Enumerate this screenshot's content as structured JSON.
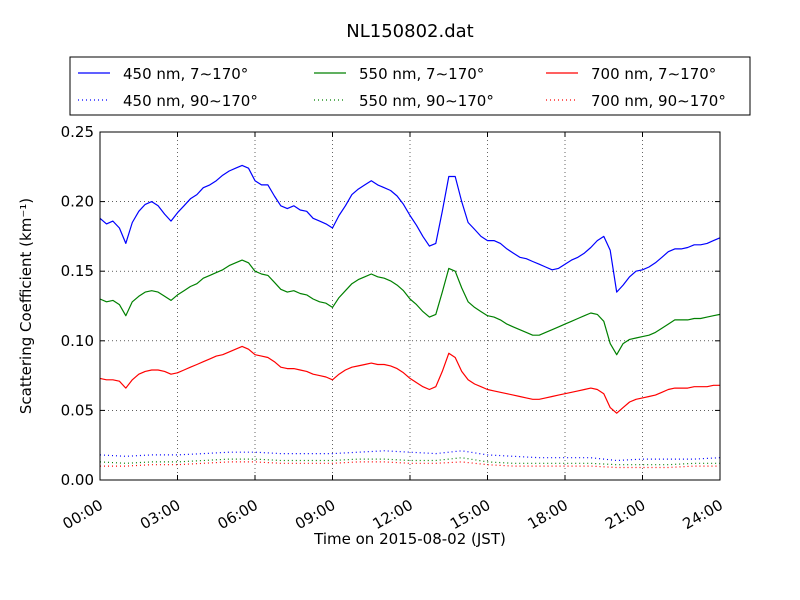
{
  "chart_data": {
    "type": "line",
    "title": "NL150802.dat",
    "xlabel": "Time on 2015-08-02 (JST)",
    "ylabel": "Scattering Coefficient (km⁻¹)",
    "x_unit": "hours",
    "xlim": [
      0,
      24
    ],
    "ylim": [
      0,
      0.25
    ],
    "grid": true,
    "legend_placement": "top",
    "x_ticks": [
      "00:00",
      "03:00",
      "06:00",
      "09:00",
      "12:00",
      "15:00",
      "18:00",
      "21:00",
      "24:00"
    ],
    "y_ticks": [
      "0.00",
      "0.05",
      "0.10",
      "0.15",
      "0.20",
      "0.25"
    ],
    "series": [
      {
        "name": "450 nm, 7∼170°",
        "color": "#0000ff",
        "style": "solid",
        "x": [
          0,
          0.25,
          0.5,
          0.75,
          1,
          1.25,
          1.5,
          1.75,
          2,
          2.25,
          2.5,
          2.75,
          3,
          3.25,
          3.5,
          3.75,
          4,
          4.25,
          4.5,
          4.75,
          5,
          5.25,
          5.5,
          5.75,
          6,
          6.25,
          6.5,
          6.75,
          7,
          7.25,
          7.5,
          7.75,
          8,
          8.25,
          8.5,
          8.75,
          9,
          9.25,
          9.5,
          9.75,
          10,
          10.25,
          10.5,
          10.75,
          11,
          11.25,
          11.5,
          11.75,
          12,
          12.25,
          12.5,
          12.75,
          13,
          13.25,
          13.5,
          13.75,
          14,
          14.25,
          14.5,
          14.75,
          15,
          15.25,
          15.5,
          15.75,
          16,
          16.25,
          16.5,
          16.75,
          17,
          17.25,
          17.5,
          17.75,
          18,
          18.25,
          18.5,
          18.75,
          19,
          19.25,
          19.5,
          19.75,
          20,
          20.25,
          20.5,
          20.75,
          21,
          21.25,
          21.5,
          21.75,
          22,
          22.25,
          22.5,
          22.75,
          23,
          23.25,
          23.5,
          23.75,
          24
        ],
        "y": [
          0.188,
          0.184,
          0.186,
          0.181,
          0.17,
          0.185,
          0.193,
          0.198,
          0.2,
          0.197,
          0.191,
          0.186,
          0.192,
          0.197,
          0.202,
          0.205,
          0.21,
          0.212,
          0.215,
          0.219,
          0.222,
          0.224,
          0.226,
          0.224,
          0.215,
          0.212,
          0.212,
          0.204,
          0.197,
          0.195,
          0.197,
          0.194,
          0.193,
          0.188,
          0.186,
          0.184,
          0.181,
          0.19,
          0.197,
          0.205,
          0.209,
          0.212,
          0.215,
          0.212,
          0.21,
          0.208,
          0.204,
          0.198,
          0.19,
          0.183,
          0.175,
          0.168,
          0.17,
          0.193,
          0.218,
          0.218,
          0.2,
          0.185,
          0.18,
          0.175,
          0.172,
          0.172,
          0.17,
          0.166,
          0.163,
          0.16,
          0.159,
          0.157,
          0.155,
          0.153,
          0.151,
          0.152,
          0.155,
          0.158,
          0.16,
          0.163,
          0.167,
          0.172,
          0.175,
          0.165,
          0.135,
          0.14,
          0.146,
          0.15,
          0.151,
          0.153,
          0.156,
          0.16,
          0.164,
          0.166,
          0.166,
          0.167,
          0.169,
          0.169,
          0.17,
          0.172,
          0.174
        ]
      },
      {
        "name": "550 nm, 7∼170°",
        "color": "#008000",
        "style": "solid",
        "x": [
          0,
          0.25,
          0.5,
          0.75,
          1,
          1.25,
          1.5,
          1.75,
          2,
          2.25,
          2.5,
          2.75,
          3,
          3.25,
          3.5,
          3.75,
          4,
          4.25,
          4.5,
          4.75,
          5,
          5.25,
          5.5,
          5.75,
          6,
          6.25,
          6.5,
          6.75,
          7,
          7.25,
          7.5,
          7.75,
          8,
          8.25,
          8.5,
          8.75,
          9,
          9.25,
          9.5,
          9.75,
          10,
          10.25,
          10.5,
          10.75,
          11,
          11.25,
          11.5,
          11.75,
          12,
          12.25,
          12.5,
          12.75,
          13,
          13.25,
          13.5,
          13.75,
          14,
          14.25,
          14.5,
          14.75,
          15,
          15.25,
          15.5,
          15.75,
          16,
          16.25,
          16.5,
          16.75,
          17,
          17.25,
          17.5,
          17.75,
          18,
          18.25,
          18.5,
          18.75,
          19,
          19.25,
          19.5,
          19.75,
          20,
          20.25,
          20.5,
          20.75,
          21,
          21.25,
          21.5,
          21.75,
          22,
          22.25,
          22.5,
          22.75,
          23,
          23.25,
          23.5,
          23.75,
          24
        ],
        "y": [
          0.13,
          0.128,
          0.129,
          0.126,
          0.118,
          0.128,
          0.132,
          0.135,
          0.136,
          0.135,
          0.132,
          0.129,
          0.133,
          0.136,
          0.139,
          0.141,
          0.145,
          0.147,
          0.149,
          0.151,
          0.154,
          0.156,
          0.158,
          0.156,
          0.15,
          0.148,
          0.147,
          0.142,
          0.137,
          0.135,
          0.136,
          0.134,
          0.133,
          0.13,
          0.128,
          0.127,
          0.124,
          0.131,
          0.136,
          0.141,
          0.144,
          0.146,
          0.148,
          0.146,
          0.145,
          0.143,
          0.14,
          0.136,
          0.13,
          0.126,
          0.121,
          0.117,
          0.119,
          0.135,
          0.152,
          0.15,
          0.138,
          0.128,
          0.124,
          0.121,
          0.118,
          0.117,
          0.115,
          0.112,
          0.11,
          0.108,
          0.106,
          0.104,
          0.104,
          0.106,
          0.108,
          0.11,
          0.112,
          0.114,
          0.116,
          0.118,
          0.12,
          0.119,
          0.114,
          0.098,
          0.09,
          0.098,
          0.101,
          0.102,
          0.103,
          0.104,
          0.106,
          0.109,
          0.112,
          0.115,
          0.115,
          0.115,
          0.116,
          0.116,
          0.117,
          0.118,
          0.119
        ]
      },
      {
        "name": "700 nm, 7∼170°",
        "color": "#ff0000",
        "style": "solid",
        "x": [
          0,
          0.25,
          0.5,
          0.75,
          1,
          1.25,
          1.5,
          1.75,
          2,
          2.25,
          2.5,
          2.75,
          3,
          3.25,
          3.5,
          3.75,
          4,
          4.25,
          4.5,
          4.75,
          5,
          5.25,
          5.5,
          5.75,
          6,
          6.25,
          6.5,
          6.75,
          7,
          7.25,
          7.5,
          7.75,
          8,
          8.25,
          8.5,
          8.75,
          9,
          9.25,
          9.5,
          9.75,
          10,
          10.25,
          10.5,
          10.75,
          11,
          11.25,
          11.5,
          11.75,
          12,
          12.25,
          12.5,
          12.75,
          13,
          13.25,
          13.5,
          13.75,
          14,
          14.25,
          14.5,
          14.75,
          15,
          15.25,
          15.5,
          15.75,
          16,
          16.25,
          16.5,
          16.75,
          17,
          17.25,
          17.5,
          17.75,
          18,
          18.25,
          18.5,
          18.75,
          19,
          19.25,
          19.5,
          19.75,
          20,
          20.25,
          20.5,
          20.75,
          21,
          21.25,
          21.5,
          21.75,
          22,
          22.25,
          22.5,
          22.75,
          23,
          23.25,
          23.5,
          23.75,
          24
        ],
        "y": [
          0.073,
          0.072,
          0.072,
          0.071,
          0.066,
          0.072,
          0.076,
          0.078,
          0.079,
          0.079,
          0.078,
          0.076,
          0.077,
          0.079,
          0.081,
          0.083,
          0.085,
          0.087,
          0.089,
          0.09,
          0.092,
          0.094,
          0.096,
          0.094,
          0.09,
          0.089,
          0.088,
          0.085,
          0.081,
          0.08,
          0.08,
          0.079,
          0.078,
          0.076,
          0.075,
          0.074,
          0.072,
          0.076,
          0.079,
          0.081,
          0.082,
          0.083,
          0.084,
          0.083,
          0.083,
          0.082,
          0.08,
          0.077,
          0.073,
          0.07,
          0.067,
          0.065,
          0.067,
          0.078,
          0.091,
          0.088,
          0.078,
          0.072,
          0.069,
          0.067,
          0.065,
          0.064,
          0.063,
          0.062,
          0.061,
          0.06,
          0.059,
          0.058,
          0.058,
          0.059,
          0.06,
          0.061,
          0.062,
          0.063,
          0.064,
          0.065,
          0.066,
          0.065,
          0.062,
          0.052,
          0.048,
          0.052,
          0.056,
          0.058,
          0.059,
          0.06,
          0.061,
          0.063,
          0.065,
          0.066,
          0.066,
          0.066,
          0.067,
          0.067,
          0.067,
          0.068,
          0.068
        ]
      },
      {
        "name": "450 nm, 90∼170°",
        "color": "#0000ff",
        "style": "dotted",
        "x": [
          0,
          1,
          2,
          3,
          4,
          5,
          6,
          7,
          8,
          9,
          10,
          11,
          12,
          13,
          14,
          15,
          16,
          17,
          18,
          19,
          20,
          21,
          22,
          23,
          24
        ],
        "y": [
          0.018,
          0.017,
          0.018,
          0.018,
          0.019,
          0.02,
          0.02,
          0.019,
          0.019,
          0.019,
          0.02,
          0.021,
          0.02,
          0.019,
          0.021,
          0.018,
          0.017,
          0.016,
          0.016,
          0.016,
          0.014,
          0.015,
          0.015,
          0.015,
          0.016
        ]
      },
      {
        "name": "550 nm, 90∼170°",
        "color": "#008000",
        "style": "dotted",
        "x": [
          0,
          1,
          2,
          3,
          4,
          5,
          6,
          7,
          8,
          9,
          10,
          11,
          12,
          13,
          14,
          15,
          16,
          17,
          18,
          19,
          20,
          21,
          22,
          23,
          24
        ],
        "y": [
          0.013,
          0.012,
          0.013,
          0.013,
          0.014,
          0.015,
          0.015,
          0.014,
          0.014,
          0.014,
          0.015,
          0.015,
          0.014,
          0.014,
          0.016,
          0.013,
          0.012,
          0.012,
          0.012,
          0.012,
          0.011,
          0.011,
          0.011,
          0.012,
          0.012
        ]
      },
      {
        "name": "700 nm, 90∼170°",
        "color": "#ff0000",
        "style": "dotted",
        "x": [
          0,
          1,
          2,
          3,
          4,
          5,
          6,
          7,
          8,
          9,
          10,
          11,
          12,
          13,
          14,
          15,
          16,
          17,
          18,
          19,
          20,
          21,
          22,
          23,
          24
        ],
        "y": [
          0.01,
          0.01,
          0.011,
          0.011,
          0.012,
          0.013,
          0.013,
          0.012,
          0.012,
          0.012,
          0.013,
          0.013,
          0.012,
          0.012,
          0.013,
          0.011,
          0.01,
          0.01,
          0.01,
          0.01,
          0.009,
          0.009,
          0.009,
          0.01,
          0.01
        ]
      }
    ]
  }
}
